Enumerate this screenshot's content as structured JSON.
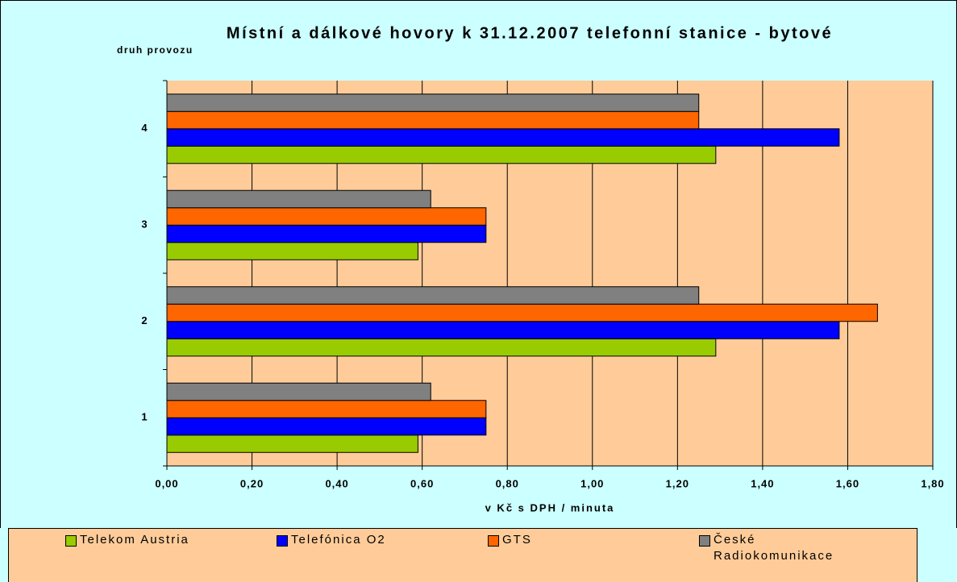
{
  "chart_data": {
    "type": "hbar",
    "title": "Místní a dálkové hovory k 31.12.2007 telefonní stanice - bytové",
    "y_label": "druh provozu",
    "x_label": "v Kč s DPH / minuta",
    "categories": [
      "1",
      "2",
      "3",
      "4"
    ],
    "series": [
      {
        "name": "Telekom Austria",
        "color": "#99cc00",
        "values": [
          0.59,
          1.29,
          0.59,
          1.29
        ]
      },
      {
        "name": "Telefónica O2",
        "color": "#0000ff",
        "values": [
          0.75,
          1.58,
          0.75,
          1.58
        ]
      },
      {
        "name": "GTS",
        "color": "#ff6600",
        "values": [
          0.75,
          1.67,
          0.75,
          1.25
        ]
      },
      {
        "name": "České Radiokomunikace",
        "color": "#808080",
        "values": [
          0.62,
          1.25,
          0.62,
          1.25
        ]
      }
    ],
    "xlim": [
      0,
      1.8
    ],
    "xticks": [
      {
        "value": 0,
        "label": "0,00"
      },
      {
        "value": 0.2,
        "label": "0,20"
      },
      {
        "value": 0.4,
        "label": "0,40"
      },
      {
        "value": 0.6,
        "label": "0,60"
      },
      {
        "value": 0.8,
        "label": "0,80"
      },
      {
        "value": 1.0,
        "label": "1,00"
      },
      {
        "value": 1.2,
        "label": "1,20"
      },
      {
        "value": 1.4,
        "label": "1,40"
      },
      {
        "value": 1.6,
        "label": "1,60"
      },
      {
        "value": 1.8,
        "label": "1,80"
      }
    ],
    "grid": true,
    "legend": "bottom"
  }
}
